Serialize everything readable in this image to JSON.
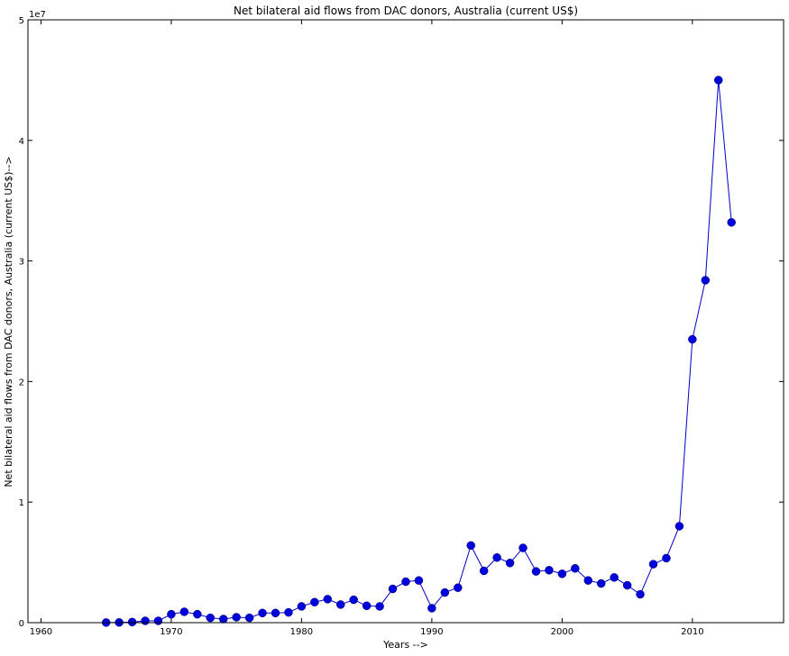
{
  "chart_data": {
    "type": "line",
    "title": "Net bilateral aid flows from DAC donors, Australia (current US$)",
    "xlabel": "Years -->",
    "ylabel": "Net bilateral aid flows from DAC donors, Australia (current US$)-->",
    "y_offset_label": "1e7",
    "xlim": [
      1959,
      2017
    ],
    "ylim": [
      0,
      50000000
    ],
    "x_ticks": [
      1960,
      1970,
      1980,
      1990,
      2000,
      2010
    ],
    "x_tick_labels": [
      "1960",
      "1970",
      "1980",
      "1990",
      "2000",
      "2010"
    ],
    "y_ticks": [
      0,
      10000000,
      20000000,
      30000000,
      40000000,
      50000000
    ],
    "y_tick_labels": [
      "0",
      "1",
      "2",
      "3",
      "4",
      "5"
    ],
    "grid": false,
    "colors": {
      "series": "#0000cc",
      "marker": "#0000dd",
      "axes": "#000000"
    },
    "series": [
      {
        "x": [
          1965,
          1966,
          1967,
          1968,
          1969,
          1970,
          1971,
          1972,
          1973,
          1974,
          1975,
          1976,
          1977,
          1978,
          1979,
          1980,
          1981,
          1982,
          1983,
          1984,
          1985,
          1986,
          1987,
          1988,
          1989,
          1990,
          1991,
          1992,
          1993,
          1994,
          1995,
          1996,
          1997,
          1998,
          1999,
          2000,
          2001,
          2002,
          2003,
          2004,
          2005,
          2006,
          2007,
          2008,
          2009,
          2010,
          2011,
          2012,
          2013
        ],
        "values": [
          10000,
          20000,
          50000,
          150000,
          150000,
          700000,
          900000,
          700000,
          400000,
          300000,
          450000,
          400000,
          800000,
          800000,
          850000,
          1350000,
          1700000,
          1950000,
          1500000,
          1900000,
          1400000,
          1350000,
          2800000,
          3400000,
          3500000,
          1200000,
          2500000,
          2900000,
          6400000,
          4300000,
          5400000,
          4950000,
          6200000,
          4250000,
          4350000,
          4050000,
          4500000,
          3500000,
          3250000,
          3750000,
          3100000,
          2350000,
          4850000,
          5350000,
          8000000,
          23500000,
          28400000,
          45000000,
          33200000
        ]
      }
    ]
  }
}
